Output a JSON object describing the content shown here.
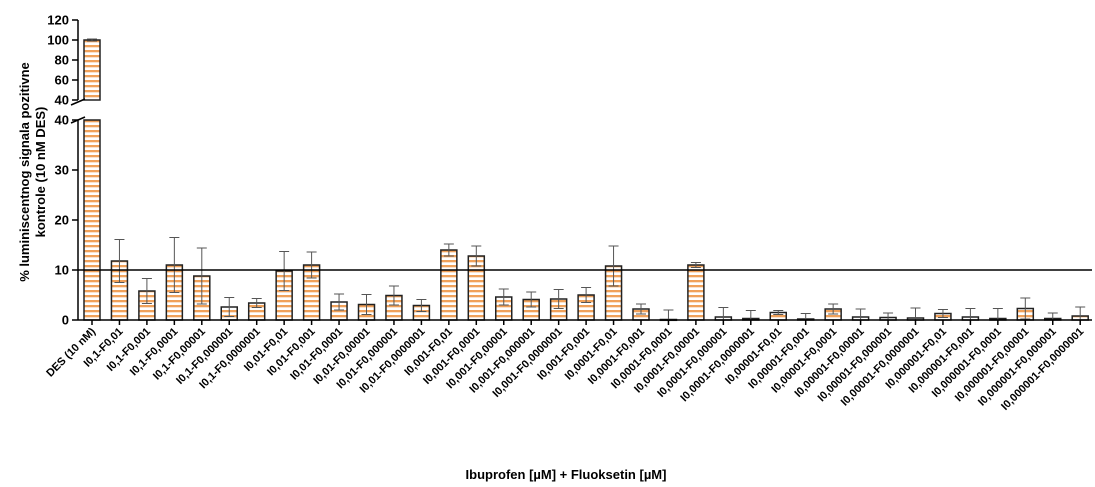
{
  "chart_data": {
    "type": "bar",
    "title": "",
    "xlabel": "Ibuprofen [µM] + Fluoksetin [µM]",
    "ylabel_line1": "% luminiscentnog signala pozitivne",
    "ylabel_line2": "kontrole (10 nM DES)",
    "y_axis_broken": true,
    "lower_segment": {
      "ylim": [
        0,
        40
      ],
      "ticks": [
        "0",
        "10",
        "20",
        "30",
        "40"
      ]
    },
    "upper_segment": {
      "ylim": [
        40,
        120
      ],
      "ticks": [
        "40",
        "60",
        "80",
        "100",
        "120"
      ]
    },
    "reference_line": 10,
    "bar_fill": "#ffffff",
    "bar_stripe_color": "#f0a15a",
    "bar_edge_color": "#222222",
    "categories": [
      "DES (10 nM)",
      "I0,1-F0,01",
      "I0,1-F0,001",
      "I0,1-F0,0001",
      "I0,1-F0,00001",
      "I0,1-F0,000001",
      "I0,1-F0,0000001",
      "I0,01-F0,01",
      "I0,01-F0,001",
      "I0,01-F0,0001",
      "I0,01-F0,00001",
      "I0,01-F0,000001",
      "I0,01-F0,0000001",
      "I0,001-F0,01",
      "I0,001-F0,0001",
      "I0,001-F0,00001",
      "I0,001-F0,000001",
      "I0,001-F0,0000001",
      "I0,001-F0,001",
      "I0,0001-F0,01",
      "I0,0001-F0,001",
      "I0,0001-F0,0001",
      "I0,0001-F0,00001",
      "I0,0001-F0,000001",
      "I0,0001-F0,0000001",
      "I0,00001-F0,01",
      "I0,00001-F0,001",
      "I0,00001-F0,0001",
      "I0,00001-F0,00001",
      "I0,00001-F0,000001",
      "I0,00001-F0,0000001",
      "I0,000001-F0,01",
      "I0,000001-F0,001",
      "I0,000001-F0,0001",
      "I0,000001-F0,00001",
      "I0,000001-F0,000001",
      "I0,000001-F0,0000001"
    ],
    "values": [
      100,
      11.8,
      5.8,
      11,
      8.8,
      2.6,
      3.4,
      9.8,
      11,
      3.6,
      3.1,
      4.9,
      2.9,
      14,
      12.8,
      4.6,
      4.1,
      4.2,
      5,
      10.8,
      2.2,
      0.1,
      11,
      0.6,
      0.3,
      1.5,
      0.2,
      2.2,
      0.6,
      0.5,
      0.4,
      1.3,
      0.6,
      0.3,
      2.3,
      0.3,
      0.8
    ],
    "error": [
      1,
      4.3,
      2.5,
      5.5,
      5.6,
      1.9,
      0.9,
      3.9,
      2.6,
      1.6,
      2,
      1.9,
      1.2,
      1.2,
      2,
      1.6,
      1.5,
      1.9,
      1.5,
      4,
      1,
      1.9,
      0.5,
      1.9,
      1.6,
      0.4,
      1.1,
      1,
      1.6,
      0.9,
      2,
      0.8,
      1.7,
      2,
      2.1,
      1.1,
      1.8
    ]
  }
}
